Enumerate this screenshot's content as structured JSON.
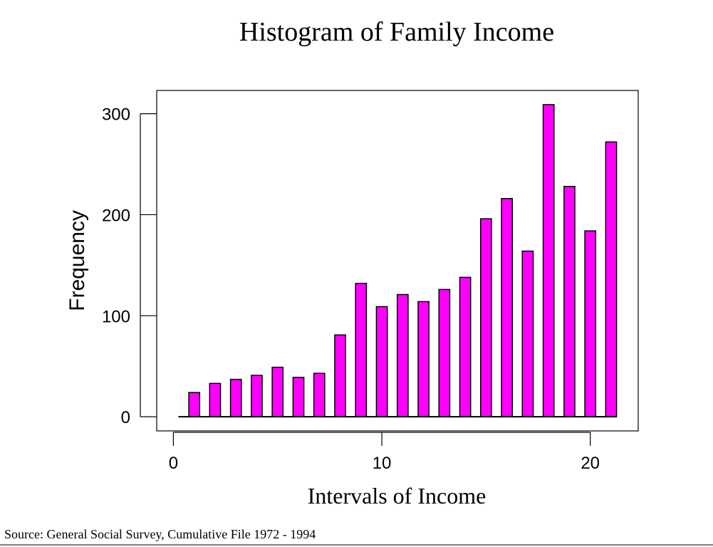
{
  "chart_data": {
    "type": "bar",
    "title": "Histogram of Family Income",
    "xlabel": "Intervals of Income",
    "ylabel": "Frequency",
    "x": [
      1,
      2,
      3,
      4,
      5,
      6,
      7,
      8,
      9,
      10,
      11,
      12,
      13,
      14,
      15,
      16,
      17,
      18,
      19,
      20,
      21
    ],
    "values": [
      24,
      33,
      37,
      41,
      49,
      39,
      43,
      81,
      132,
      109,
      121,
      114,
      126,
      138,
      196,
      216,
      164,
      309,
      228,
      184,
      272
    ],
    "xlim": [
      -0.8,
      22.3
    ],
    "ylim": [
      -14,
      323
    ],
    "xticks": [
      0,
      10,
      20
    ],
    "yticks": [
      0,
      100,
      200,
      300
    ],
    "grid": false,
    "legend": "none",
    "bar_color": "#ff00ff",
    "bar_edge_color": "#000000"
  },
  "footer": {
    "source": "Source: General Social Survey, Cumulative File 1972 - 1994"
  }
}
